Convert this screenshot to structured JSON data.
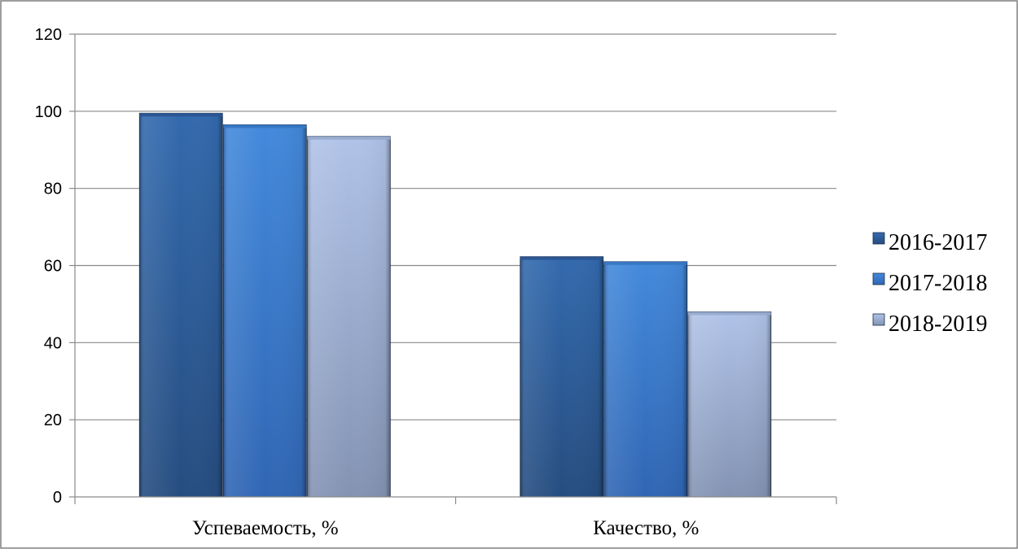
{
  "chart_data": {
    "type": "bar",
    "title": "",
    "xlabel": "",
    "ylabel": "",
    "categories": [
      "Успеваемость, %",
      "Качество, %"
    ],
    "series": [
      {
        "name": "2016-2017",
        "values": [
          99.5,
          62.3
        ],
        "color": "#2f5f9e",
        "top_color": "#2a5490"
      },
      {
        "name": "2017-2018",
        "values": [
          96.5,
          61.0
        ],
        "color": "#3f83d3",
        "top_color": "#3576c2"
      },
      {
        "name": "2018-2019",
        "values": [
          93.5,
          48.0
        ],
        "color": "#a3b8df",
        "top_color": "#95a8cc"
      }
    ],
    "ylim": [
      0,
      120
    ],
    "yticks": [
      0,
      20,
      40,
      60,
      80,
      100,
      120
    ],
    "ytick_labels": [
      "0",
      "20",
      "40",
      "60",
      "80",
      "100",
      "120"
    ],
    "grid": true,
    "legend": "right",
    "gridline_color": "#8a8a8a",
    "axis_color": "#8a8a8a",
    "border_color": "#7f7f7f"
  }
}
